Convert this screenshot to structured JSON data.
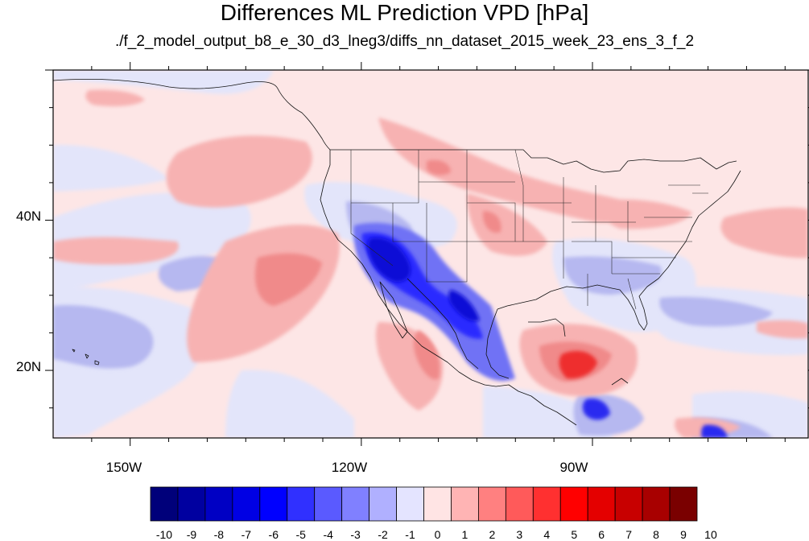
{
  "title": "Differences ML Prediction VPD [hPa]",
  "subtitle": "./f_2_model_output_b8_e_30_d3_lneg3/diffs_nn_dataset_2015_week_23_ens_3_f_2",
  "map": {
    "projection": "cylindrical equidistant",
    "lon_range": [
      -160,
      -62
    ],
    "lat_range": [
      11,
      60
    ],
    "lon_ticks": [
      {
        "value": -150,
        "label": "150W"
      },
      {
        "value": -120,
        "label": "120W"
      },
      {
        "value": -90,
        "label": "90W"
      }
    ],
    "lat_ticks": [
      {
        "value": 20,
        "label": "20N"
      },
      {
        "value": 40,
        "label": "40N"
      }
    ]
  },
  "colorbar": {
    "labels": [
      "-10",
      "-9",
      "-8",
      "-7",
      "-6",
      "-5",
      "-4",
      "-3",
      "-2",
      "-1",
      "0",
      "1",
      "2",
      "3",
      "4",
      "5",
      "6",
      "7",
      "8",
      "9",
      "10"
    ],
    "colors": [
      "#00007a",
      "#0000a0",
      "#0000c4",
      "#0000e4",
      "#0000ff",
      "#3030ff",
      "#5a5aff",
      "#8080ff",
      "#b0b0ff",
      "#e4e4ff",
      "#ffe4e4",
      "#ffb4b4",
      "#ff8080",
      "#ff5a5a",
      "#ff3030",
      "#ff0000",
      "#e40000",
      "#c80000",
      "#a80000",
      "#7a0000"
    ]
  }
}
